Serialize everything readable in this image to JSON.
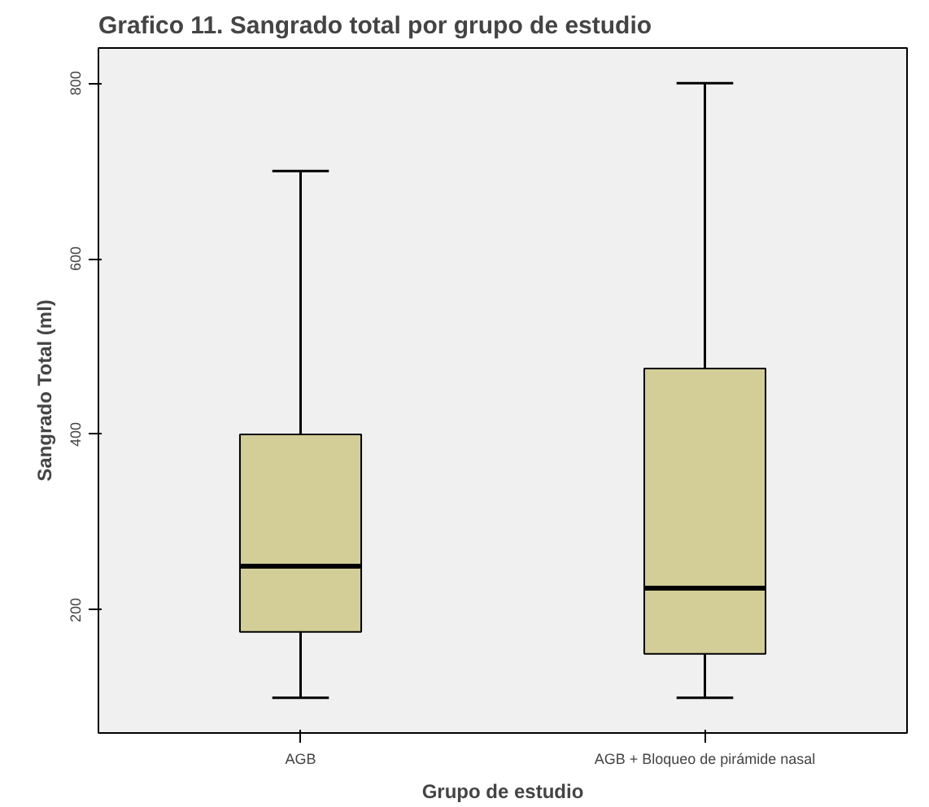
{
  "chart_data": {
    "type": "box",
    "title": "Grafico 11. Sangrado total por grupo de estudio",
    "xlabel": "Grupo de estudio",
    "ylabel": "Sangrado Total (ml)",
    "categories": [
      "AGB",
      "AGB + Bloqueo de pirámide nasal"
    ],
    "color": "#d3ce97",
    "boxes": [
      {
        "low": 100,
        "q1": 175,
        "median": 250,
        "q3": 400,
        "high": 700
      },
      {
        "low": 100,
        "q1": 150,
        "median": 225,
        "q3": 475,
        "high": 800
      }
    ],
    "ylim": [
      60,
      840
    ],
    "yticks": [
      200,
      400,
      600,
      800
    ],
    "grid": false
  }
}
